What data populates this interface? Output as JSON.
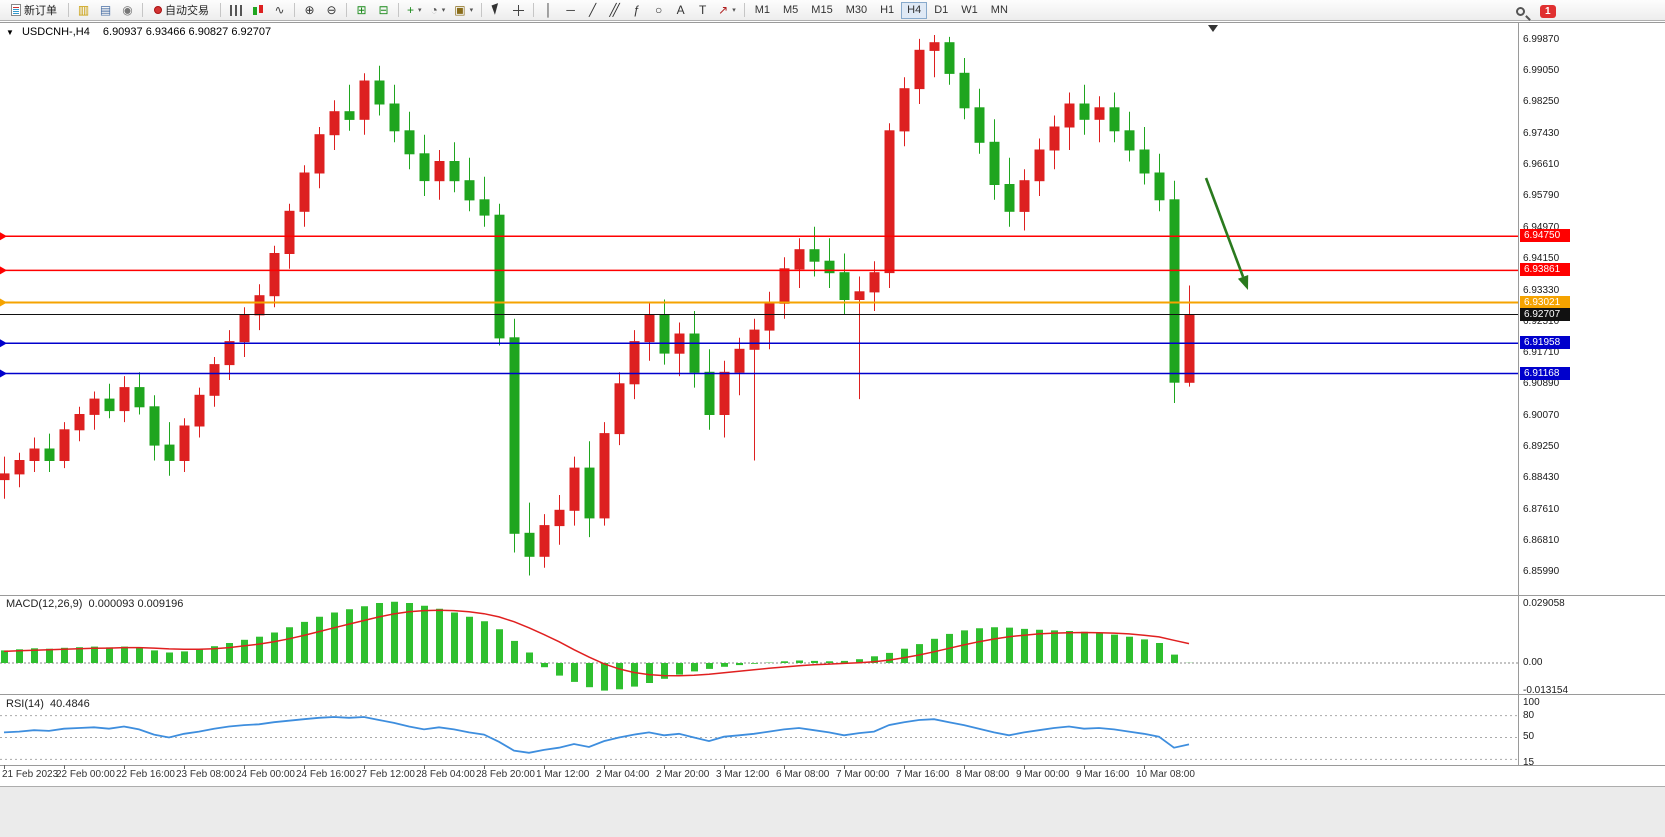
{
  "toolbar": {
    "new_order_label": "新订单",
    "autotrading_label": "自动交易",
    "icon_groups": [
      [
        "charts-icon",
        "market-watch-icon",
        "navigator-icon"
      ],
      [
        "bar-chart-icon",
        "candlestick-chart-icon",
        "line-chart-icon"
      ],
      [
        "zoom-in-icon",
        "zoom-out-icon"
      ],
      [
        "tile-windows-icon",
        "auto-arrange-icon"
      ],
      [
        "indicators-icon",
        "periods-icon",
        "templates-icon"
      ],
      [
        "cursor-icon",
        "crosshair-icon"
      ],
      [
        "vertical-line-icon",
        "horizontal-line-icon",
        "trendline-icon",
        "equidistant-channel-icon",
        "fibonacci-icon",
        "ellipse-icon",
        "text-icon",
        "label-icon",
        "arrows-icon"
      ]
    ],
    "timeframes": [
      "M1",
      "M5",
      "M15",
      "M30",
      "H1",
      "H4",
      "D1",
      "W1",
      "MN"
    ],
    "active_timeframe": "H4",
    "notification_count": "1"
  },
  "chart": {
    "title": "USDCNH-,H4",
    "ohlc_text": "6.90937 6.93466 6.90827 6.92707"
  },
  "chart_data": {
    "type": "candlestick",
    "symbol": "USDCNH-",
    "timeframe": "H4",
    "current_candle": {
      "open": 6.90937,
      "high": 6.93466,
      "low": 6.90827,
      "close": 6.92707
    },
    "up_color": "#dd2020",
    "down_color": "#1fa51f",
    "x_labels": [
      "21 Feb 2023",
      "22 Feb 00:00",
      "22 Feb 16:00",
      "23 Feb 08:00",
      "24 Feb 00:00",
      "24 Feb 16:00",
      "27 Feb 12:00",
      "28 Feb 04:00",
      "28 Feb 20:00",
      "1 Mar 12:00",
      "2 Mar 04:00",
      "2 Mar 20:00",
      "3 Mar 12:00",
      "6 Mar 08:00",
      "7 Mar 00:00",
      "7 Mar 16:00",
      "8 Mar 08:00",
      "9 Mar 00:00",
      "9 Mar 16:00",
      "10 Mar 08:00"
    ],
    "x_label_every": 4,
    "price_axis_labels": [
      "6.99870",
      "6.99050",
      "6.98250",
      "6.97430",
      "6.96610",
      "6.95790",
      "6.94970",
      "6.94150",
      "6.93330",
      "6.92510",
      "6.91710",
      "6.90890",
      "6.90070",
      "6.89250",
      "6.88430",
      "6.87610",
      "6.86810",
      "6.85990"
    ],
    "candles": [
      [
        6.884,
        6.89,
        6.879,
        6.8855
      ],
      [
        6.8855,
        6.891,
        6.882,
        6.889
      ],
      [
        6.889,
        6.895,
        6.886,
        6.892
      ],
      [
        6.892,
        6.896,
        6.886,
        6.889
      ],
      [
        6.889,
        6.899,
        6.887,
        6.897
      ],
      [
        6.897,
        6.903,
        6.894,
        6.901
      ],
      [
        6.901,
        6.907,
        6.897,
        6.905
      ],
      [
        6.905,
        6.909,
        6.9,
        6.902
      ],
      [
        6.902,
        6.911,
        6.899,
        6.908
      ],
      [
        6.908,
        6.912,
        6.901,
        6.903
      ],
      [
        6.903,
        6.906,
        6.889,
        6.893
      ],
      [
        6.893,
        6.899,
        6.885,
        6.889
      ],
      [
        6.889,
        6.9,
        6.886,
        6.898
      ],
      [
        6.898,
        6.908,
        6.895,
        6.906
      ],
      [
        6.906,
        6.916,
        6.903,
        6.914
      ],
      [
        6.914,
        6.923,
        6.91,
        6.92
      ],
      [
        6.92,
        6.929,
        6.916,
        6.927
      ],
      [
        6.927,
        6.935,
        6.923,
        6.932
      ],
      [
        6.932,
        6.945,
        6.929,
        6.943
      ],
      [
        6.943,
        6.956,
        6.939,
        6.954
      ],
      [
        6.954,
        6.966,
        6.95,
        6.964
      ],
      [
        6.964,
        6.976,
        6.96,
        6.974
      ],
      [
        6.974,
        6.983,
        6.97,
        6.98
      ],
      [
        6.98,
        6.987,
        6.975,
        6.978
      ],
      [
        6.978,
        6.99,
        6.974,
        6.988
      ],
      [
        6.988,
        6.992,
        6.979,
        6.982
      ],
      [
        6.982,
        6.987,
        6.972,
        6.975
      ],
      [
        6.975,
        6.98,
        6.965,
        6.969
      ],
      [
        6.969,
        6.974,
        6.958,
        6.962
      ],
      [
        6.962,
        6.97,
        6.957,
        6.967
      ],
      [
        6.967,
        6.972,
        6.959,
        6.962
      ],
      [
        6.962,
        6.968,
        6.954,
        6.957
      ],
      [
        6.957,
        6.963,
        6.95,
        6.953
      ],
      [
        6.953,
        6.956,
        6.919,
        6.921
      ],
      [
        6.921,
        6.926,
        6.865,
        6.87
      ],
      [
        6.87,
        6.878,
        6.859,
        6.864
      ],
      [
        6.864,
        6.875,
        6.861,
        6.872
      ],
      [
        6.872,
        6.88,
        6.867,
        6.876
      ],
      [
        6.876,
        6.89,
        6.872,
        6.887
      ],
      [
        6.887,
        6.894,
        6.869,
        6.874
      ],
      [
        6.874,
        6.899,
        6.872,
        6.896
      ],
      [
        6.896,
        6.912,
        6.893,
        6.909
      ],
      [
        6.909,
        6.923,
        6.905,
        6.92
      ],
      [
        6.92,
        6.93,
        6.915,
        6.927
      ],
      [
        6.927,
        6.931,
        6.914,
        6.917
      ],
      [
        6.917,
        6.925,
        6.911,
        6.922
      ],
      [
        6.922,
        6.928,
        6.908,
        6.912
      ],
      [
        6.912,
        6.918,
        6.897,
        6.901
      ],
      [
        6.901,
        6.915,
        6.895,
        6.912
      ],
      [
        6.912,
        6.921,
        6.906,
        6.918
      ],
      [
        6.918,
        6.926,
        6.889,
        6.923
      ],
      [
        6.923,
        6.933,
        6.918,
        6.93
      ],
      [
        6.93,
        6.942,
        6.926,
        6.939
      ],
      [
        6.939,
        6.947,
        6.934,
        6.944
      ],
      [
        6.944,
        6.95,
        6.937,
        6.941
      ],
      [
        6.941,
        6.947,
        6.934,
        6.938
      ],
      [
        6.938,
        6.943,
        6.927,
        6.931
      ],
      [
        6.931,
        6.937,
        6.905,
        6.933
      ],
      [
        6.933,
        6.941,
        6.928,
        6.938
      ],
      [
        6.938,
        6.977,
        6.934,
        6.975
      ],
      [
        6.975,
        6.989,
        6.971,
        6.986
      ],
      [
        6.986,
        6.999,
        6.982,
        6.996
      ],
      [
        6.996,
        7.0,
        6.989,
        6.998
      ],
      [
        6.998,
        6.9995,
        6.987,
        6.99
      ],
      [
        6.99,
        6.994,
        6.978,
        6.981
      ],
      [
        6.981,
        6.986,
        6.969,
        6.972
      ],
      [
        6.972,
        6.978,
        6.957,
        6.961
      ],
      [
        6.961,
        6.968,
        6.95,
        6.954
      ],
      [
        6.954,
        6.965,
        6.949,
        6.962
      ],
      [
        6.962,
        6.973,
        6.958,
        6.97
      ],
      [
        6.97,
        6.979,
        6.965,
        6.976
      ],
      [
        6.976,
        6.985,
        6.97,
        6.982
      ],
      [
        6.982,
        6.987,
        6.974,
        6.978
      ],
      [
        6.978,
        6.984,
        6.972,
        6.981
      ],
      [
        6.981,
        6.985,
        6.972,
        6.975
      ],
      [
        6.975,
        6.98,
        6.967,
        6.97
      ],
      [
        6.97,
        6.976,
        6.961,
        6.964
      ],
      [
        6.964,
        6.969,
        6.954,
        6.957
      ],
      [
        6.957,
        6.962,
        6.904,
        6.9094
      ],
      [
        6.90937,
        6.93466,
        6.90827,
        6.92707
      ]
    ],
    "levels": [
      {
        "price": 6.9475,
        "label": "6.94750",
        "color": "#ff0000",
        "width": 1.5
      },
      {
        "price": 6.93861,
        "label": "6.93861",
        "color": "#ff0000",
        "width": 1.5
      },
      {
        "price": 6.93021,
        "label": "6.93021",
        "color": "#f5a300",
        "width": 2
      },
      {
        "price": 6.92707,
        "label": "6.92707",
        "color": "#111111",
        "width": 1,
        "is_price_line": true
      },
      {
        "price": 6.91958,
        "label": "6.91958",
        "color": "#0000cc",
        "width": 1.5
      },
      {
        "price": 6.91168,
        "label": "6.91168",
        "color": "#0000cc",
        "width": 1.5
      }
    ],
    "arrow_annotation": {
      "from": [
        1206,
        178
      ],
      "to": [
        1248,
        290
      ],
      "color": "#2a7a1e"
    },
    "indicators": {
      "macd": {
        "label": "MACD(12,26,9)",
        "values_text": "0.000093 0.009196",
        "axis_labels": [
          "0.029058",
          "0.00",
          "-0.013154"
        ],
        "histogram_color": "#2fbf2f",
        "signal_color": "#e02020",
        "histogram": [
          0.006,
          0.0065,
          0.007,
          0.0068,
          0.0072,
          0.0075,
          0.0078,
          0.0074,
          0.0078,
          0.0072,
          0.006,
          0.005,
          0.0055,
          0.0065,
          0.008,
          0.0095,
          0.011,
          0.0125,
          0.0145,
          0.017,
          0.0195,
          0.022,
          0.024,
          0.0255,
          0.027,
          0.0285,
          0.0291,
          0.0285,
          0.0272,
          0.0258,
          0.024,
          0.022,
          0.0198,
          0.016,
          0.0105,
          0.005,
          -0.002,
          -0.006,
          -0.009,
          -0.0115,
          -0.0131,
          -0.0125,
          -0.0112,
          -0.0095,
          -0.0075,
          -0.0055,
          -0.004,
          -0.0028,
          -0.0018,
          -0.001,
          -0.0004,
          0.0002,
          0.0008,
          0.0012,
          0.001,
          0.0008,
          0.001,
          0.0018,
          0.0032,
          0.0048,
          0.0068,
          0.009,
          0.0115,
          0.0138,
          0.0155,
          0.0165,
          0.017,
          0.0168,
          0.0162,
          0.0158,
          0.0155,
          0.0152,
          0.0148,
          0.0142,
          0.0135,
          0.0125,
          0.0112,
          0.0095,
          0.004,
          9.3e-05
        ],
        "signal": [
          0.0055,
          0.0058,
          0.0061,
          0.0063,
          0.0065,
          0.0068,
          0.007,
          0.0071,
          0.0073,
          0.0073,
          0.0071,
          0.0067,
          0.0065,
          0.0065,
          0.0068,
          0.0073,
          0.0081,
          0.009,
          0.0101,
          0.0115,
          0.0131,
          0.0149,
          0.0167,
          0.0185,
          0.0202,
          0.0219,
          0.0233,
          0.0243,
          0.0249,
          0.0251,
          0.0249,
          0.0243,
          0.0234,
          0.0219,
          0.0196,
          0.0167,
          0.0135,
          0.0101,
          0.0063,
          0.0028,
          -0.0004,
          -0.0028,
          -0.0045,
          -0.0055,
          -0.006,
          -0.0061,
          -0.0058,
          -0.0053,
          -0.0046,
          -0.0039,
          -0.0032,
          -0.0025,
          -0.0019,
          -0.0013,
          -0.0008,
          -0.0005,
          -0.0002,
          0.0001,
          0.0006,
          0.0014,
          0.0025,
          0.0038,
          0.0053,
          0.007,
          0.0086,
          0.0101,
          0.0114,
          0.0125,
          0.0132,
          0.0138,
          0.0142,
          0.0144,
          0.0145,
          0.0144,
          0.0142,
          0.0138,
          0.0132,
          0.0124,
          0.0108,
          0.009196
        ]
      },
      "rsi": {
        "label": "RSI(14)",
        "value_text": "40.4846",
        "axis_labels": [
          "100",
          "80",
          "50",
          "15"
        ],
        "levels": [
          80,
          50,
          20
        ],
        "line_color": "#3e8ede",
        "values": [
          57,
          58,
          60,
          59,
          62,
          63,
          64,
          62,
          65,
          61,
          54,
          50,
          55,
          58,
          62,
          65,
          67,
          68,
          71,
          73,
          75,
          77,
          78,
          77,
          78,
          74,
          70,
          65,
          61,
          64,
          61,
          57,
          54,
          44,
          32,
          29,
          33,
          36,
          41,
          37,
          45,
          50,
          54,
          57,
          53,
          55,
          50,
          45,
          51,
          53,
          55,
          58,
          61,
          63,
          60,
          57,
          53,
          56,
          58,
          67,
          71,
          74,
          75,
          71,
          67,
          62,
          57,
          53,
          57,
          60,
          63,
          65,
          62,
          63,
          61,
          58,
          55,
          51,
          36,
          40.48
        ]
      }
    }
  }
}
